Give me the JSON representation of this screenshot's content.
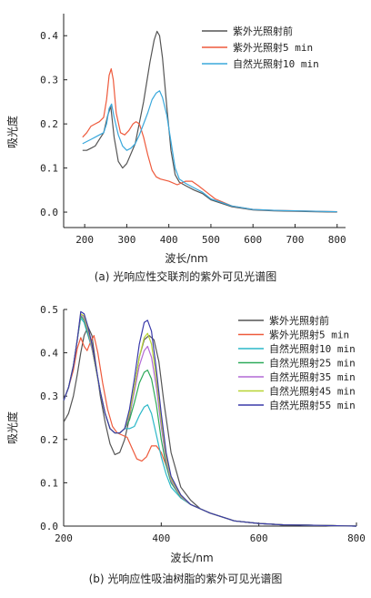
{
  "chart_data": [
    {
      "type": "line",
      "caption": "(a) 光响应性交联剂的紫外可见光谱图",
      "xlabel": "波长/nm",
      "ylabel": "吸光度",
      "xlim": [
        150,
        820
      ],
      "ylim": [
        -0.035,
        0.45
      ],
      "xticks": [
        200,
        300,
        400,
        500,
        600,
        700,
        800
      ],
      "yticks": [
        0.0,
        0.1,
        0.2,
        0.3,
        0.4
      ],
      "ytick_labels": [
        "0.0",
        "0.1",
        "0.2",
        "0.3",
        "0.4"
      ],
      "grid": false,
      "legend_position": "top-right",
      "series": [
        {
          "name": "紫外光照射前",
          "color": "#555555",
          "x": [
            195,
            205,
            215,
            225,
            235,
            245,
            255,
            262,
            270,
            280,
            290,
            300,
            320,
            340,
            355,
            365,
            372,
            378,
            385,
            395,
            405,
            415,
            425,
            440,
            460,
            480,
            500,
            550,
            600,
            650,
            700,
            750,
            800
          ],
          "y": [
            0.14,
            0.14,
            0.145,
            0.15,
            0.165,
            0.18,
            0.22,
            0.24,
            0.17,
            0.115,
            0.1,
            0.11,
            0.155,
            0.25,
            0.34,
            0.39,
            0.41,
            0.4,
            0.35,
            0.24,
            0.14,
            0.085,
            0.068,
            0.06,
            0.05,
            0.042,
            0.028,
            0.012,
            0.005,
            0.003,
            0.002,
            0.001,
            0.0
          ]
        },
        {
          "name": "紫外光照射5 min",
          "color": "#ee5a3c",
          "x": [
            195,
            205,
            215,
            225,
            235,
            245,
            252,
            258,
            263,
            268,
            275,
            285,
            295,
            305,
            315,
            322,
            330,
            340,
            350,
            360,
            370,
            380,
            400,
            420,
            440,
            455,
            470,
            490,
            510,
            550,
            600,
            650,
            700,
            750,
            800
          ],
          "y": [
            0.17,
            0.18,
            0.195,
            0.2,
            0.205,
            0.215,
            0.255,
            0.31,
            0.325,
            0.3,
            0.225,
            0.18,
            0.175,
            0.185,
            0.2,
            0.205,
            0.2,
            0.17,
            0.13,
            0.095,
            0.08,
            0.075,
            0.07,
            0.062,
            0.07,
            0.07,
            0.06,
            0.045,
            0.03,
            0.014,
            0.006,
            0.004,
            0.003,
            0.002,
            0.001
          ]
        },
        {
          "name": "自然光照射10 min",
          "color": "#3aa8dc",
          "x": [
            195,
            205,
            215,
            225,
            235,
            245,
            252,
            258,
            264,
            270,
            280,
            290,
            300,
            310,
            320,
            330,
            340,
            350,
            360,
            370,
            378,
            385,
            395,
            405,
            415,
            425,
            440,
            460,
            480,
            500,
            550,
            600,
            650,
            700,
            750,
            800
          ],
          "y": [
            0.155,
            0.16,
            0.165,
            0.17,
            0.175,
            0.18,
            0.2,
            0.235,
            0.245,
            0.215,
            0.175,
            0.15,
            0.14,
            0.145,
            0.155,
            0.175,
            0.2,
            0.225,
            0.255,
            0.27,
            0.275,
            0.26,
            0.22,
            0.16,
            0.1,
            0.075,
            0.065,
            0.055,
            0.045,
            0.03,
            0.014,
            0.006,
            0.004,
            0.003,
            0.002,
            0.001
          ]
        }
      ]
    },
    {
      "type": "line",
      "caption": "(b) 光响应性吸油树脂的紫外可见光谱图",
      "xlabel": "波长/nm",
      "ylabel": "吸光度",
      "xlim": [
        200,
        800
      ],
      "ylim": [
        0.0,
        0.5
      ],
      "xticks": [
        200,
        400,
        600,
        800
      ],
      "yticks": [
        0.0,
        0.1,
        0.2,
        0.3,
        0.4,
        0.5
      ],
      "ytick_labels": [
        "0.0",
        "0.1",
        "0.2",
        "0.3",
        "0.4",
        "0.5"
      ],
      "grid": false,
      "legend_position": "top-right",
      "series": [
        {
          "name": "紫外光照射前",
          "color": "#555555",
          "x": [
            200,
            210,
            220,
            228,
            235,
            242,
            250,
            258,
            265,
            275,
            285,
            295,
            305,
            315,
            325,
            335,
            345,
            355,
            365,
            375,
            385,
            395,
            405,
            420,
            440,
            460,
            480,
            500,
            550,
            600,
            650,
            700,
            750,
            800
          ],
          "y": [
            0.24,
            0.26,
            0.3,
            0.35,
            0.4,
            0.44,
            0.46,
            0.44,
            0.38,
            0.3,
            0.24,
            0.19,
            0.165,
            0.17,
            0.2,
            0.25,
            0.32,
            0.39,
            0.43,
            0.44,
            0.43,
            0.38,
            0.29,
            0.17,
            0.09,
            0.06,
            0.04,
            0.03,
            0.012,
            0.006,
            0.003,
            0.002,
            0.001,
            0.0
          ]
        },
        {
          "name": "紫外光照射5 min",
          "color": "#ee5a3c",
          "x": [
            200,
            210,
            220,
            228,
            235,
            242,
            248,
            255,
            262,
            270,
            280,
            290,
            300,
            310,
            320,
            330,
            340,
            350,
            360,
            370,
            380,
            390,
            400,
            410,
            420,
            440,
            460,
            480,
            500,
            550,
            600,
            650,
            700,
            750,
            800
          ],
          "y": [
            0.29,
            0.32,
            0.36,
            0.41,
            0.435,
            0.415,
            0.405,
            0.425,
            0.44,
            0.4,
            0.33,
            0.27,
            0.23,
            0.215,
            0.21,
            0.205,
            0.18,
            0.155,
            0.15,
            0.16,
            0.185,
            0.185,
            0.17,
            0.14,
            0.11,
            0.07,
            0.05,
            0.04,
            0.03,
            0.012,
            0.006,
            0.003,
            0.002,
            0.001,
            0.0
          ]
        },
        {
          "name": "自然光照射10 min",
          "color": "#2bb8c8",
          "x": [
            200,
            210,
            220,
            228,
            235,
            242,
            250,
            258,
            265,
            275,
            285,
            295,
            305,
            315,
            325,
            335,
            345,
            355,
            365,
            372,
            380,
            390,
            400,
            410,
            420,
            440,
            460,
            480,
            500,
            550,
            600,
            650,
            700,
            750,
            800
          ],
          "y": [
            0.29,
            0.32,
            0.37,
            0.43,
            0.48,
            0.47,
            0.44,
            0.41,
            0.37,
            0.31,
            0.26,
            0.225,
            0.215,
            0.215,
            0.225,
            0.225,
            0.23,
            0.255,
            0.275,
            0.28,
            0.26,
            0.21,
            0.16,
            0.12,
            0.09,
            0.065,
            0.05,
            0.04,
            0.03,
            0.012,
            0.006,
            0.003,
            0.002,
            0.001,
            0.0
          ]
        },
        {
          "name": "自然光照射25 min",
          "color": "#2eaa5a",
          "x": [
            200,
            210,
            220,
            228,
            235,
            242,
            250,
            258,
            265,
            275,
            285,
            295,
            305,
            315,
            325,
            335,
            345,
            355,
            365,
            372,
            380,
            390,
            400,
            410,
            420,
            440,
            460,
            480,
            500,
            550,
            600,
            650,
            700,
            750,
            800
          ],
          "y": [
            0.29,
            0.32,
            0.37,
            0.43,
            0.485,
            0.475,
            0.445,
            0.41,
            0.37,
            0.31,
            0.26,
            0.225,
            0.215,
            0.215,
            0.225,
            0.245,
            0.285,
            0.33,
            0.355,
            0.36,
            0.34,
            0.28,
            0.2,
            0.14,
            0.1,
            0.067,
            0.05,
            0.04,
            0.03,
            0.012,
            0.006,
            0.003,
            0.002,
            0.001,
            0.0
          ]
        },
        {
          "name": "自然光照射35 min",
          "color": "#b26ad6",
          "x": [
            200,
            210,
            220,
            228,
            235,
            242,
            250,
            258,
            265,
            275,
            285,
            295,
            305,
            315,
            325,
            335,
            345,
            355,
            365,
            372,
            380,
            390,
            400,
            410,
            420,
            440,
            460,
            480,
            500,
            550,
            600,
            650,
            700,
            750,
            800
          ],
          "y": [
            0.29,
            0.32,
            0.37,
            0.43,
            0.49,
            0.48,
            0.45,
            0.41,
            0.37,
            0.31,
            0.26,
            0.225,
            0.215,
            0.215,
            0.225,
            0.255,
            0.31,
            0.37,
            0.405,
            0.415,
            0.39,
            0.32,
            0.23,
            0.15,
            0.105,
            0.068,
            0.05,
            0.04,
            0.03,
            0.012,
            0.006,
            0.003,
            0.002,
            0.001,
            0.0
          ]
        },
        {
          "name": "自然光照射45 min",
          "color": "#b8d432",
          "x": [
            200,
            210,
            220,
            228,
            235,
            242,
            250,
            258,
            265,
            275,
            285,
            295,
            305,
            315,
            325,
            335,
            345,
            355,
            365,
            372,
            380,
            390,
            400,
            410,
            420,
            440,
            460,
            480,
            500,
            550,
            600,
            650,
            700,
            750,
            800
          ],
          "y": [
            0.29,
            0.32,
            0.37,
            0.43,
            0.49,
            0.485,
            0.455,
            0.415,
            0.37,
            0.31,
            0.26,
            0.225,
            0.215,
            0.215,
            0.225,
            0.26,
            0.32,
            0.39,
            0.435,
            0.445,
            0.42,
            0.34,
            0.245,
            0.16,
            0.11,
            0.07,
            0.05,
            0.04,
            0.03,
            0.012,
            0.006,
            0.003,
            0.002,
            0.001,
            0.0
          ]
        },
        {
          "name": "自然光照射55 min",
          "color": "#3a3aaa",
          "x": [
            200,
            210,
            220,
            228,
            235,
            242,
            250,
            258,
            265,
            275,
            285,
            295,
            305,
            315,
            325,
            335,
            345,
            355,
            365,
            372,
            380,
            390,
            400,
            410,
            420,
            440,
            460,
            480,
            500,
            550,
            600,
            650,
            700,
            750,
            800
          ],
          "y": [
            0.29,
            0.32,
            0.37,
            0.43,
            0.495,
            0.49,
            0.46,
            0.42,
            0.375,
            0.31,
            0.26,
            0.225,
            0.215,
            0.215,
            0.225,
            0.27,
            0.34,
            0.42,
            0.47,
            0.475,
            0.45,
            0.36,
            0.26,
            0.17,
            0.115,
            0.072,
            0.05,
            0.04,
            0.03,
            0.012,
            0.006,
            0.003,
            0.002,
            0.001,
            0.0
          ]
        }
      ]
    }
  ]
}
